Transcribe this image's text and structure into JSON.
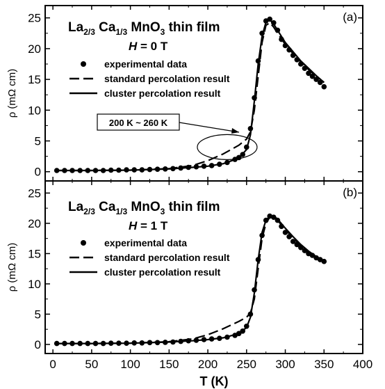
{
  "figure": {
    "xlabel": "T (K)",
    "x_ticks": [
      0,
      50,
      100,
      150,
      200,
      250,
      300,
      350,
      400
    ],
    "xlim": [
      -10,
      400
    ]
  },
  "chart_data": [
    {
      "type": "line",
      "panel_label": "(a)",
      "title": {
        "prefix": "La",
        "sub1": "2/3",
        "mid": " Ca",
        "sub2": "1/3",
        "tail": " MnO",
        "sub3": "3",
        "end": " thin film"
      },
      "field_label": {
        "italic": "H",
        "rest": " = 0 T"
      },
      "ylabel": {
        "prefix": "ρ (mΩ cm)"
      },
      "y_ticks": [
        0,
        5,
        10,
        15,
        20,
        25
      ],
      "ylim": [
        -1.5,
        27
      ],
      "legend": [
        "experimental data",
        "standard percolation result",
        "cluster percolation result"
      ],
      "annotation": "200 K ~ 260 K",
      "series": [
        {
          "name": "experimental data",
          "style": "points",
          "x": [
            5,
            15,
            25,
            35,
            45,
            55,
            65,
            75,
            85,
            95,
            105,
            115,
            125,
            135,
            145,
            155,
            165,
            175,
            185,
            195,
            205,
            215,
            225,
            235,
            240,
            245,
            250,
            255,
            260,
            265,
            270,
            275,
            280,
            285,
            290,
            295,
            300,
            305,
            310,
            315,
            320,
            325,
            330,
            335,
            340,
            345,
            350
          ],
          "y": [
            0.2,
            0.2,
            0.2,
            0.2,
            0.2,
            0.2,
            0.2,
            0.25,
            0.25,
            0.3,
            0.3,
            0.3,
            0.35,
            0.4,
            0.45,
            0.5,
            0.6,
            0.7,
            0.8,
            0.9,
            1.0,
            1.2,
            1.5,
            2.0,
            2.3,
            2.8,
            4.0,
            7.0,
            12.0,
            18.0,
            22.5,
            24.5,
            24.8,
            24.2,
            23.0,
            21.5,
            20.5,
            19.8,
            18.9,
            18.2,
            17.5,
            16.8,
            16.0,
            15.5,
            15.0,
            14.5,
            13.8
          ]
        },
        {
          "name": "standard percolation result",
          "style": "dashed",
          "x": [
            5,
            50,
            100,
            150,
            180,
            200,
            220,
            240,
            250,
            255,
            260,
            265,
            270,
            275,
            280,
            285,
            290,
            300,
            310,
            320,
            330,
            340,
            350
          ],
          "y": [
            0.2,
            0.2,
            0.25,
            0.5,
            1.0,
            1.8,
            2.9,
            4.3,
            5.3,
            6.5,
            10.0,
            15.5,
            21.0,
            23.8,
            24.2,
            23.5,
            22.5,
            20.7,
            19.2,
            17.8,
            16.6,
            15.5,
            14.5
          ]
        },
        {
          "name": "cluster percolation result",
          "style": "solid",
          "x": [
            5,
            50,
            100,
            150,
            180,
            200,
            220,
            240,
            250,
            255,
            260,
            265,
            270,
            275,
            280,
            285,
            290,
            300,
            310,
            320,
            330,
            340,
            350
          ],
          "y": [
            0.2,
            0.2,
            0.25,
            0.45,
            0.7,
            0.9,
            1.3,
            2.2,
            3.6,
            6.0,
            11.5,
            17.5,
            22.0,
            24.3,
            24.7,
            24.0,
            23.0,
            21.0,
            19.5,
            18.0,
            16.8,
            15.6,
            14.5
          ]
        }
      ]
    },
    {
      "type": "line",
      "panel_label": "(b)",
      "title": {
        "prefix": "La",
        "sub1": "2/3",
        "mid": " Ca",
        "sub2": "1/3",
        "tail": " MnO",
        "sub3": "3",
        "end": " thin film"
      },
      "field_label": {
        "italic": "H",
        "rest": " = 1 T"
      },
      "ylabel": {
        "prefix": "ρ (mΩ cm)"
      },
      "y_ticks": [
        0,
        5,
        10,
        15,
        20,
        25
      ],
      "ylim": [
        -1.5,
        27
      ],
      "legend": [
        "experimental data",
        "standard percolation result",
        "cluster percolation result"
      ],
      "series": [
        {
          "name": "experimental data",
          "style": "points",
          "x": [
            5,
            15,
            25,
            35,
            45,
            55,
            65,
            75,
            85,
            95,
            105,
            115,
            125,
            135,
            145,
            155,
            165,
            175,
            185,
            195,
            205,
            215,
            225,
            235,
            240,
            245,
            250,
            255,
            260,
            265,
            270,
            275,
            280,
            285,
            290,
            295,
            300,
            305,
            310,
            315,
            320,
            325,
            330,
            335,
            340,
            345,
            350
          ],
          "y": [
            0.15,
            0.15,
            0.15,
            0.15,
            0.15,
            0.15,
            0.15,
            0.2,
            0.2,
            0.2,
            0.25,
            0.25,
            0.3,
            0.3,
            0.35,
            0.4,
            0.5,
            0.6,
            0.7,
            0.8,
            0.9,
            1.0,
            1.2,
            1.5,
            1.8,
            2.2,
            3.0,
            5.0,
            9.0,
            14.0,
            18.0,
            20.5,
            21.2,
            21.0,
            20.5,
            19.5,
            18.5,
            17.8,
            17.0,
            16.5,
            16.0,
            15.5,
            15.0,
            14.7,
            14.3,
            14.0,
            13.7
          ]
        },
        {
          "name": "standard percolation result",
          "style": "dashed",
          "x": [
            5,
            50,
            100,
            150,
            180,
            200,
            220,
            240,
            250,
            255,
            260,
            265,
            270,
            275,
            280,
            285,
            290,
            300,
            310,
            320,
            330,
            340,
            350
          ],
          "y": [
            0.15,
            0.15,
            0.2,
            0.45,
            0.9,
            1.6,
            2.6,
            3.8,
            4.5,
            5.2,
            7.5,
            12.5,
            17.5,
            20.0,
            21.0,
            21.0,
            20.5,
            19.0,
            17.6,
            16.3,
            15.3,
            14.5,
            13.8
          ]
        },
        {
          "name": "cluster percolation result",
          "style": "solid",
          "x": [
            5,
            50,
            100,
            150,
            180,
            200,
            220,
            240,
            250,
            255,
            260,
            265,
            270,
            275,
            280,
            285,
            290,
            300,
            310,
            320,
            330,
            340,
            350
          ],
          "y": [
            0.15,
            0.15,
            0.2,
            0.4,
            0.6,
            0.8,
            1.1,
            1.8,
            2.8,
            4.5,
            8.5,
            14.0,
            18.5,
            20.5,
            21.2,
            21.2,
            20.7,
            19.2,
            17.8,
            16.5,
            15.4,
            14.5,
            13.8
          ]
        }
      ]
    }
  ]
}
